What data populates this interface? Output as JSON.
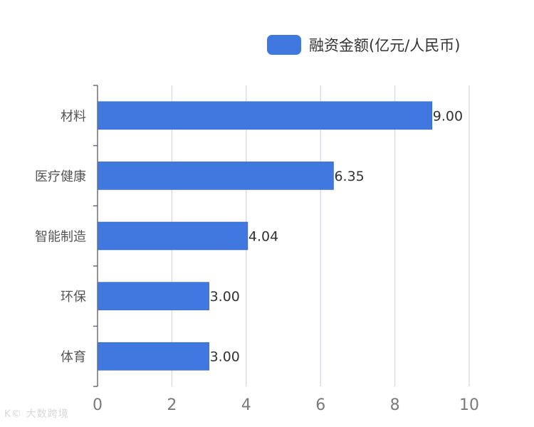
{
  "chart_data": {
    "type": "bar",
    "orientation": "horizontal",
    "categories": [
      "材料",
      "医疗健康",
      "智能制造",
      "环保",
      "体育"
    ],
    "series": [
      {
        "name": "融资金额(亿元/人民币)",
        "values": [
          9.0,
          6.35,
          4.04,
          3.0,
          3.0
        ],
        "labels": [
          "9.00",
          "6.35",
          "4.04",
          "3.00",
          "3.00"
        ]
      }
    ],
    "xlim": [
      0,
      10
    ],
    "x_ticks": [
      "0",
      "2",
      "4",
      "6",
      "8",
      "10"
    ],
    "grid": "vertical",
    "legend": "top-right",
    "bar_color": "#4178e0"
  },
  "watermark": "K© 大数跨境"
}
